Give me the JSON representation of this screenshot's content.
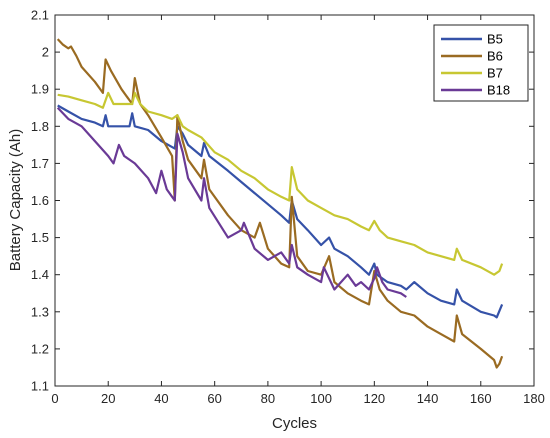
{
  "chart_data": {
    "type": "line",
    "xlabel": "Cycles",
    "ylabel": "Battery Capacity (Ah)",
    "xlim": [
      0,
      180
    ],
    "ylim": [
      1.1,
      2.1
    ],
    "xticks": [
      0,
      20,
      40,
      60,
      80,
      100,
      120,
      140,
      160,
      180
    ],
    "yticks": [
      1.1,
      1.2,
      1.3,
      1.4,
      1.5,
      1.6,
      1.7,
      1.8,
      1.9,
      2.0,
      2.1
    ],
    "xtick_labels": [
      "0",
      "20",
      "40",
      "60",
      "80",
      "100",
      "120",
      "140",
      "160",
      "180"
    ],
    "ytick_labels": [
      "1.1",
      "1.2",
      "1.3",
      "1.4",
      "1.5",
      "1.6",
      "1.7",
      "1.8",
      "1.9",
      "2",
      "2.1"
    ],
    "legend_position": "top-right",
    "grid": false,
    "series": [
      {
        "name": "B5",
        "color": "#3552a8",
        "points": [
          [
            1,
            1.856
          ],
          [
            5,
            1.84
          ],
          [
            10,
            1.82
          ],
          [
            15,
            1.81
          ],
          [
            18,
            1.8
          ],
          [
            19,
            1.83
          ],
          [
            20,
            1.8
          ],
          [
            25,
            1.8
          ],
          [
            28,
            1.8
          ],
          [
            29,
            1.835
          ],
          [
            30,
            1.8
          ],
          [
            35,
            1.79
          ],
          [
            40,
            1.76
          ],
          [
            45,
            1.74
          ],
          [
            46,
            1.8
          ],
          [
            48,
            1.78
          ],
          [
            50,
            1.75
          ],
          [
            55,
            1.72
          ],
          [
            56,
            1.755
          ],
          [
            58,
            1.72
          ],
          [
            65,
            1.68
          ],
          [
            70,
            1.65
          ],
          [
            75,
            1.62
          ],
          [
            80,
            1.59
          ],
          [
            85,
            1.56
          ],
          [
            88,
            1.54
          ],
          [
            89,
            1.6
          ],
          [
            91,
            1.55
          ],
          [
            95,
            1.52
          ],
          [
            100,
            1.48
          ],
          [
            103,
            1.5
          ],
          [
            105,
            1.47
          ],
          [
            110,
            1.45
          ],
          [
            115,
            1.42
          ],
          [
            118,
            1.4
          ],
          [
            120,
            1.43
          ],
          [
            121,
            1.4
          ],
          [
            125,
            1.38
          ],
          [
            130,
            1.37
          ],
          [
            132,
            1.36
          ],
          [
            135,
            1.38
          ],
          [
            140,
            1.35
          ],
          [
            145,
            1.33
          ],
          [
            150,
            1.32
          ],
          [
            151,
            1.36
          ],
          [
            153,
            1.33
          ],
          [
            160,
            1.3
          ],
          [
            165,
            1.29
          ],
          [
            166,
            1.285
          ],
          [
            168,
            1.32
          ]
        ]
      },
      {
        "name": "B6",
        "color": "#9a6b22",
        "points": [
          [
            1,
            2.035
          ],
          [
            3,
            2.02
          ],
          [
            5,
            2.01
          ],
          [
            6,
            2.015
          ],
          [
            8,
            1.99
          ],
          [
            10,
            1.96
          ],
          [
            15,
            1.92
          ],
          [
            18,
            1.89
          ],
          [
            19,
            1.98
          ],
          [
            21,
            1.95
          ],
          [
            25,
            1.9
          ],
          [
            29,
            1.86
          ],
          [
            30,
            1.93
          ],
          [
            32,
            1.86
          ],
          [
            35,
            1.83
          ],
          [
            40,
            1.77
          ],
          [
            44,
            1.72
          ],
          [
            45,
            1.6
          ],
          [
            46,
            1.83
          ],
          [
            48,
            1.76
          ],
          [
            50,
            1.71
          ],
          [
            55,
            1.66
          ],
          [
            56,
            1.71
          ],
          [
            58,
            1.63
          ],
          [
            65,
            1.56
          ],
          [
            70,
            1.52
          ],
          [
            75,
            1.5
          ],
          [
            77,
            1.54
          ],
          [
            80,
            1.47
          ],
          [
            85,
            1.43
          ],
          [
            88,
            1.42
          ],
          [
            89,
            1.61
          ],
          [
            91,
            1.45
          ],
          [
            95,
            1.41
          ],
          [
            100,
            1.4
          ],
          [
            103,
            1.45
          ],
          [
            105,
            1.38
          ],
          [
            110,
            1.35
          ],
          [
            115,
            1.33
          ],
          [
            118,
            1.32
          ],
          [
            120,
            1.41
          ],
          [
            122,
            1.36
          ],
          [
            125,
            1.33
          ],
          [
            130,
            1.3
          ],
          [
            135,
            1.29
          ],
          [
            140,
            1.26
          ],
          [
            145,
            1.24
          ],
          [
            150,
            1.22
          ],
          [
            151,
            1.29
          ],
          [
            153,
            1.24
          ],
          [
            160,
            1.2
          ],
          [
            165,
            1.17
          ],
          [
            166,
            1.15
          ],
          [
            167,
            1.16
          ],
          [
            168,
            1.18
          ]
        ]
      },
      {
        "name": "B7",
        "color": "#c7c732",
        "points": [
          [
            1,
            1.885
          ],
          [
            5,
            1.88
          ],
          [
            10,
            1.87
          ],
          [
            15,
            1.86
          ],
          [
            18,
            1.85
          ],
          [
            20,
            1.89
          ],
          [
            22,
            1.86
          ],
          [
            25,
            1.86
          ],
          [
            29,
            1.86
          ],
          [
            30,
            1.89
          ],
          [
            32,
            1.86
          ],
          [
            35,
            1.84
          ],
          [
            40,
            1.83
          ],
          [
            44,
            1.82
          ],
          [
            46,
            1.83
          ],
          [
            48,
            1.8
          ],
          [
            50,
            1.79
          ],
          [
            55,
            1.77
          ],
          [
            60,
            1.73
          ],
          [
            65,
            1.71
          ],
          [
            70,
            1.68
          ],
          [
            75,
            1.66
          ],
          [
            80,
            1.63
          ],
          [
            85,
            1.61
          ],
          [
            88,
            1.6
          ],
          [
            89,
            1.69
          ],
          [
            91,
            1.63
          ],
          [
            95,
            1.6
          ],
          [
            100,
            1.58
          ],
          [
            105,
            1.56
          ],
          [
            110,
            1.55
          ],
          [
            115,
            1.53
          ],
          [
            118,
            1.52
          ],
          [
            120,
            1.545
          ],
          [
            122,
            1.52
          ],
          [
            125,
            1.5
          ],
          [
            130,
            1.49
          ],
          [
            135,
            1.48
          ],
          [
            140,
            1.46
          ],
          [
            145,
            1.45
          ],
          [
            150,
            1.44
          ],
          [
            151,
            1.47
          ],
          [
            153,
            1.44
          ],
          [
            160,
            1.42
          ],
          [
            165,
            1.4
          ],
          [
            167,
            1.41
          ],
          [
            168,
            1.43
          ]
        ]
      },
      {
        "name": "B18",
        "color": "#6a3a96",
        "points": [
          [
            1,
            1.85
          ],
          [
            5,
            1.82
          ],
          [
            10,
            1.8
          ],
          [
            15,
            1.76
          ],
          [
            20,
            1.72
          ],
          [
            22,
            1.7
          ],
          [
            24,
            1.75
          ],
          [
            26,
            1.72
          ],
          [
            30,
            1.7
          ],
          [
            35,
            1.66
          ],
          [
            38,
            1.62
          ],
          [
            40,
            1.68
          ],
          [
            42,
            1.63
          ],
          [
            44,
            1.61
          ],
          [
            45,
            1.6
          ],
          [
            46,
            1.78
          ],
          [
            48,
            1.73
          ],
          [
            50,
            1.66
          ],
          [
            55,
            1.6
          ],
          [
            56,
            1.66
          ],
          [
            58,
            1.58
          ],
          [
            65,
            1.5
          ],
          [
            70,
            1.52
          ],
          [
            71,
            1.54
          ],
          [
            75,
            1.47
          ],
          [
            80,
            1.44
          ],
          [
            85,
            1.46
          ],
          [
            88,
            1.43
          ],
          [
            89,
            1.48
          ],
          [
            91,
            1.42
          ],
          [
            95,
            1.4
          ],
          [
            100,
            1.38
          ],
          [
            101,
            1.42
          ],
          [
            105,
            1.36
          ],
          [
            110,
            1.4
          ],
          [
            113,
            1.37
          ],
          [
            115,
            1.38
          ],
          [
            118,
            1.36
          ],
          [
            120,
            1.39
          ],
          [
            121,
            1.42
          ],
          [
            123,
            1.38
          ],
          [
            125,
            1.36
          ],
          [
            130,
            1.35
          ],
          [
            132,
            1.34
          ]
        ]
      }
    ]
  }
}
